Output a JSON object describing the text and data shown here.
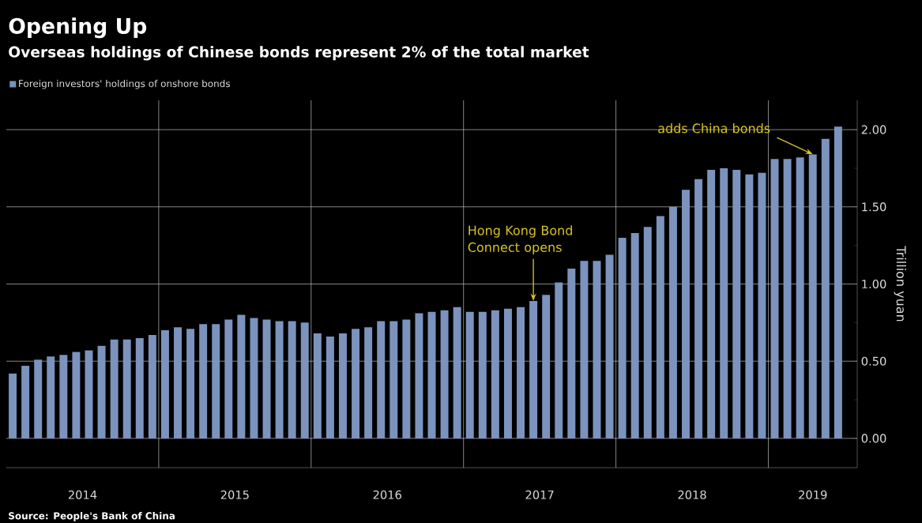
{
  "chart_data": {
    "type": "bar",
    "title": "Opening Up",
    "subtitle": "Overseas holdings of Chinese bonds represent 2% of the total market",
    "ylabel": "Trillion yuan",
    "x": [
      "2014-01",
      "2014-02",
      "2014-03",
      "2014-04",
      "2014-05",
      "2014-06",
      "2014-07",
      "2014-08",
      "2014-09",
      "2014-10",
      "2014-11",
      "2014-12",
      "2015-01",
      "2015-02",
      "2015-03",
      "2015-04",
      "2015-05",
      "2015-06",
      "2015-07",
      "2015-08",
      "2015-09",
      "2015-10",
      "2015-11",
      "2015-12",
      "2016-01",
      "2016-02",
      "2016-03",
      "2016-04",
      "2016-05",
      "2016-06",
      "2016-07",
      "2016-08",
      "2016-09",
      "2016-10",
      "2016-11",
      "2016-12",
      "2017-01",
      "2017-02",
      "2017-03",
      "2017-04",
      "2017-05",
      "2017-06",
      "2017-07",
      "2017-08",
      "2017-09",
      "2017-10",
      "2017-11",
      "2017-12",
      "2018-01",
      "2018-02",
      "2018-03",
      "2018-04",
      "2018-05",
      "2018-06",
      "2018-07",
      "2018-08",
      "2018-09",
      "2018-10",
      "2018-11",
      "2018-12",
      "2019-01",
      "2019-02",
      "2019-03",
      "2019-04",
      "2019-05",
      "2019-06"
    ],
    "series": [
      {
        "name": "Foreign investors' holdings of onshore bonds",
        "color": "#7b93bd",
        "values": [
          0.42,
          0.47,
          0.51,
          0.53,
          0.54,
          0.56,
          0.57,
          0.6,
          0.64,
          0.64,
          0.65,
          0.67,
          0.7,
          0.72,
          0.71,
          0.74,
          0.74,
          0.77,
          0.8,
          0.78,
          0.77,
          0.76,
          0.76,
          0.75,
          0.68,
          0.66,
          0.68,
          0.71,
          0.72,
          0.76,
          0.76,
          0.77,
          0.81,
          0.82,
          0.83,
          0.85,
          0.82,
          0.82,
          0.83,
          0.84,
          0.85,
          0.89,
          0.93,
          1.01,
          1.1,
          1.15,
          1.15,
          1.19,
          1.3,
          1.33,
          1.37,
          1.44,
          1.5,
          1.61,
          1.68,
          1.74,
          1.75,
          1.74,
          1.71,
          1.72,
          1.81,
          1.81,
          1.82,
          1.84,
          1.94,
          2.02
        ]
      }
    ],
    "xlim": [
      "2013-12-16",
      "2019-07-16"
    ],
    "xticks": [
      {
        "value": "2014-06-16",
        "label": "2014"
      },
      {
        "value": "2015-06-16",
        "label": "2015"
      },
      {
        "value": "2016-06-16",
        "label": "2016"
      },
      {
        "value": "2017-06-16",
        "label": "2017"
      },
      {
        "value": "2018-06-16",
        "label": "2018"
      },
      {
        "value": "2019-04-01",
        "label": "2019"
      },
      {
        "value": "2014-12-16",
        "label": null
      },
      {
        "value": "2015-12-16",
        "label": null
      },
      {
        "value": "2016-12-16",
        "label": null
      },
      {
        "value": "2017-12-16",
        "label": null
      },
      {
        "value": "2018-12-16",
        "label": null
      }
    ],
    "ylim": [
      -0.19,
      2.19
    ],
    "yticks": [
      {
        "value": 0,
        "label": "0.00"
      },
      {
        "value": 0.5,
        "label": "0.50"
      },
      {
        "value": 1,
        "label": "1.00"
      },
      {
        "value": 1.5,
        "label": "1.50"
      },
      {
        "value": 2,
        "label": "2.00"
      }
    ],
    "grid": true,
    "legend": "top left",
    "annotations": [
      {
        "text": "Hong Kong Bond Connect opens",
        "x": "2017-06",
        "y": 0.89
      },
      {
        "text": "adds China bonds",
        "x": "2019-04",
        "y": 1.84
      },
      "Source: People's Bank of China"
    ]
  }
}
